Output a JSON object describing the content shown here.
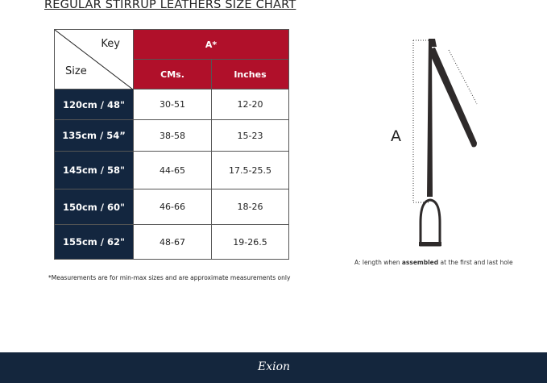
{
  "title": "REGULAR STIRRUP LEATHERS  SIZE CHART",
  "table": {
    "key_label": "Key",
    "size_label": "Size",
    "group_header": "A*",
    "columns": [
      "CMs.",
      "Inches"
    ],
    "rows": [
      {
        "size": "120cm / 48\"",
        "cms": "30-51",
        "inches": "12-20"
      },
      {
        "size": "135cm / 54”",
        "cms": "38-58",
        "inches": "15-23"
      },
      {
        "size": "145cm / 58\"",
        "cms": "44-65",
        "inches": "17.5-25.5"
      },
      {
        "size": "150cm / 60\"",
        "cms": "46-66",
        "inches": "18-26"
      },
      {
        "size": "155cm / 62\"",
        "cms": "48-67",
        "inches": "19-26.5"
      }
    ]
  },
  "note": "*Measurements are for min-max sizes and are approximate measurements only",
  "diagram": {
    "a_label": "A",
    "caption_pre": "A: length when ",
    "caption_bold": "assembled",
    "caption_post": " at the first and last hole"
  },
  "footer": {
    "logo": "Exion"
  },
  "colors": {
    "header_red": "#b0102a",
    "size_navy": "#13263f",
    "footer": "#14263d"
  }
}
